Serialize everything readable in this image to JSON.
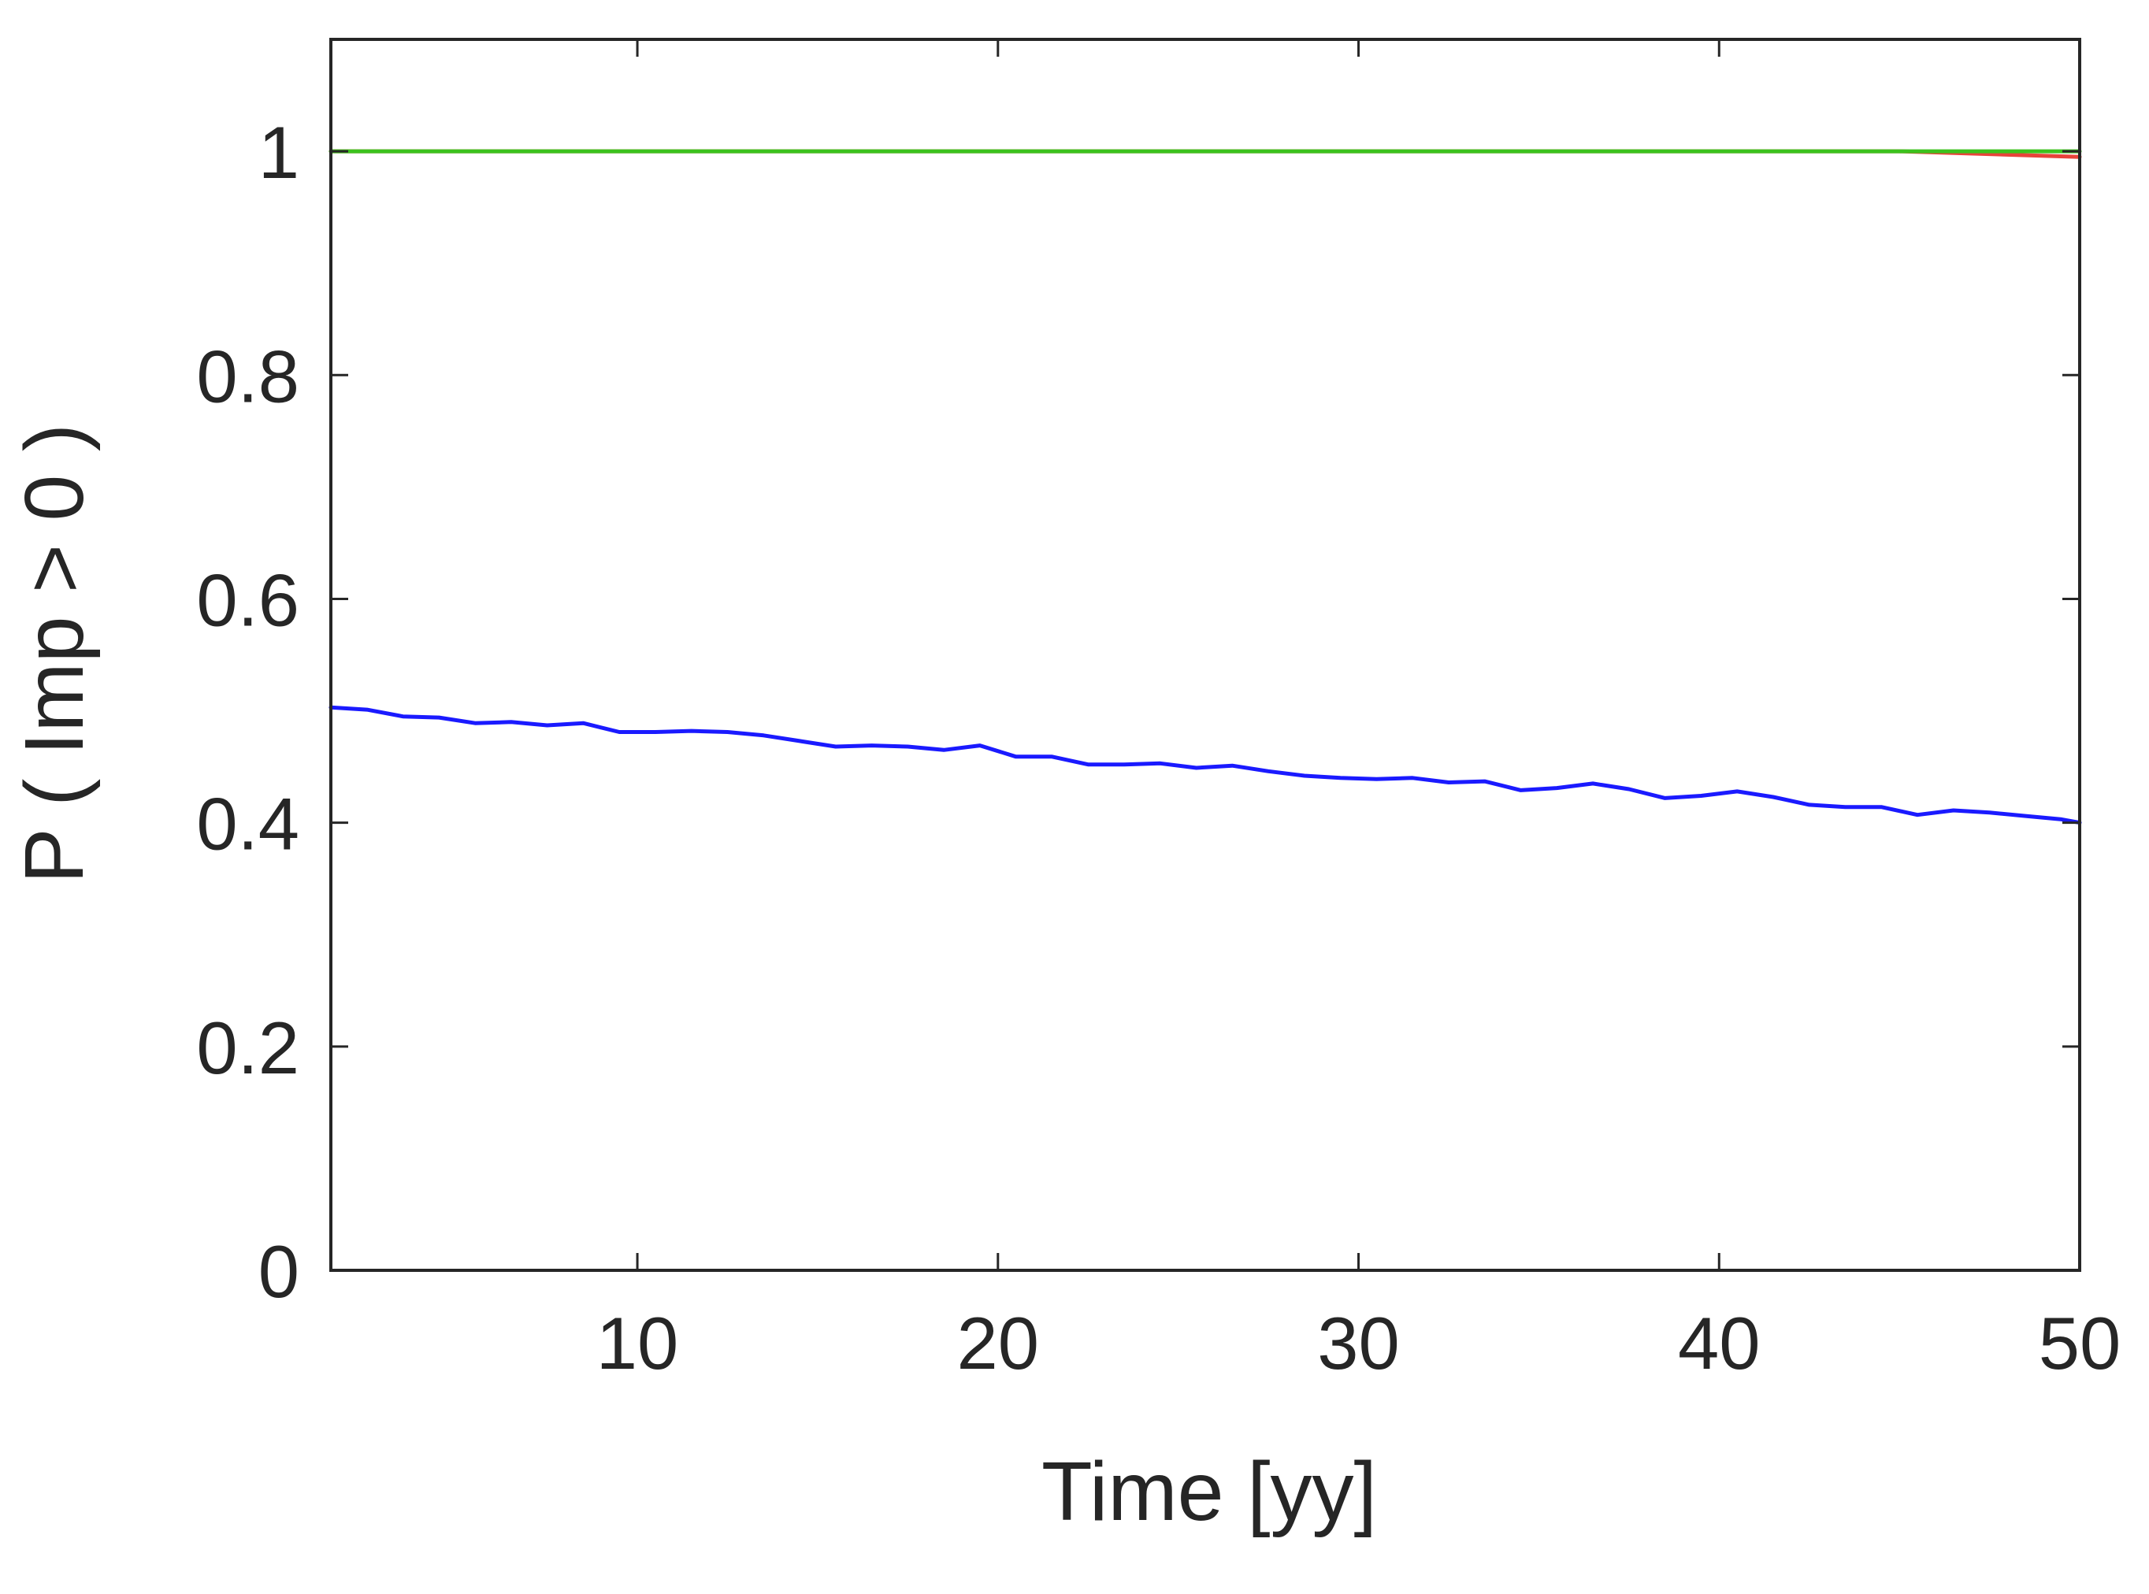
{
  "chart_data": {
    "type": "line",
    "title": "",
    "xlabel": "Time [yy]",
    "ylabel": "P ( Imp > 0 )",
    "xlim": [
      1.5,
      50
    ],
    "ylim": [
      0,
      1.1
    ],
    "xticks": [
      10,
      20,
      30,
      40,
      50
    ],
    "yticks": [
      0,
      0.2,
      0.4,
      0.6,
      0.8,
      1
    ],
    "xtick_labels": [
      "10",
      "20",
      "30",
      "40",
      "50"
    ],
    "ytick_labels": [
      "0",
      "0.2",
      "0.4",
      "0.6",
      "0.8",
      "1"
    ],
    "grid": false,
    "legend": "none",
    "series": [
      {
        "color": "#e8433a",
        "x": [
          1.5,
          10,
          20,
          30,
          40,
          45,
          50
        ],
        "y": [
          1.0,
          1.0,
          1.0,
          1.0,
          1.0,
          1.0,
          0.995
        ]
      },
      {
        "color": "#3cc21e",
        "x": [
          1.5,
          10,
          20,
          30,
          40,
          50
        ],
        "y": [
          1.0,
          1.0,
          1.0,
          1.0,
          1.0,
          1.0
        ]
      },
      {
        "color": "#1a1aff",
        "x": [
          1.5,
          2.5,
          3.5,
          4.5,
          5.5,
          6.5,
          7.5,
          8.5,
          9.5,
          10.5,
          11.5,
          12.5,
          13.5,
          14.5,
          15.5,
          16.5,
          17.5,
          18.5,
          19.5,
          20.5,
          21.5,
          22.5,
          23.5,
          24.5,
          25.5,
          26.5,
          27.5,
          28.5,
          29.5,
          30.5,
          31.5,
          32.5,
          33.5,
          34.5,
          35.5,
          36.5,
          37.5,
          38.5,
          39.5,
          40.5,
          41.5,
          42.5,
          43.5,
          44.5,
          45.5,
          46.5,
          47.5,
          48.5,
          49.5,
          50
        ],
        "y": [
          0.503,
          0.501,
          0.495,
          0.494,
          0.489,
          0.49,
          0.487,
          0.489,
          0.481,
          0.481,
          0.482,
          0.481,
          0.478,
          0.473,
          0.468,
          0.469,
          0.468,
          0.465,
          0.469,
          0.459,
          0.459,
          0.452,
          0.452,
          0.453,
          0.449,
          0.451,
          0.446,
          0.442,
          0.44,
          0.439,
          0.44,
          0.436,
          0.437,
          0.429,
          0.431,
          0.435,
          0.43,
          0.422,
          0.424,
          0.428,
          0.423,
          0.416,
          0.414,
          0.414,
          0.407,
          0.411,
          0.409,
          0.406,
          0.403,
          0.4
        ]
      }
    ]
  }
}
